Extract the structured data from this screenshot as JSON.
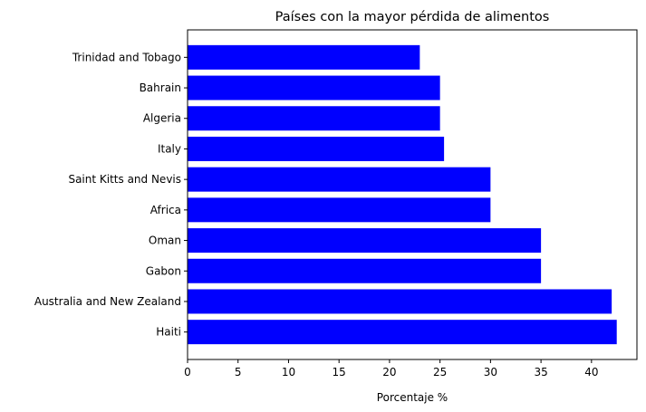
{
  "chart_data": {
    "type": "bar",
    "orientation": "horizontal",
    "title": "Países con la mayor pérdida de alimentos",
    "xlabel": "Porcentaje %",
    "ylabel": "",
    "xlim": [
      0,
      44.5
    ],
    "xticks": [
      0,
      5,
      10,
      15,
      20,
      25,
      30,
      35,
      40
    ],
    "categories": [
      "Haiti",
      "Australia and New Zealand",
      "Gabon",
      "Oman",
      "Africa",
      "Saint Kitts and Nevis",
      "Italy",
      "Algeria",
      "Bahrain",
      "Trinidad and Tobago"
    ],
    "values": [
      42.5,
      42.0,
      35.0,
      35.0,
      30.0,
      30.0,
      25.4,
      25.0,
      25.0,
      23.0
    ],
    "bar_color": "#0000ff",
    "grid": false,
    "legend": "none"
  }
}
